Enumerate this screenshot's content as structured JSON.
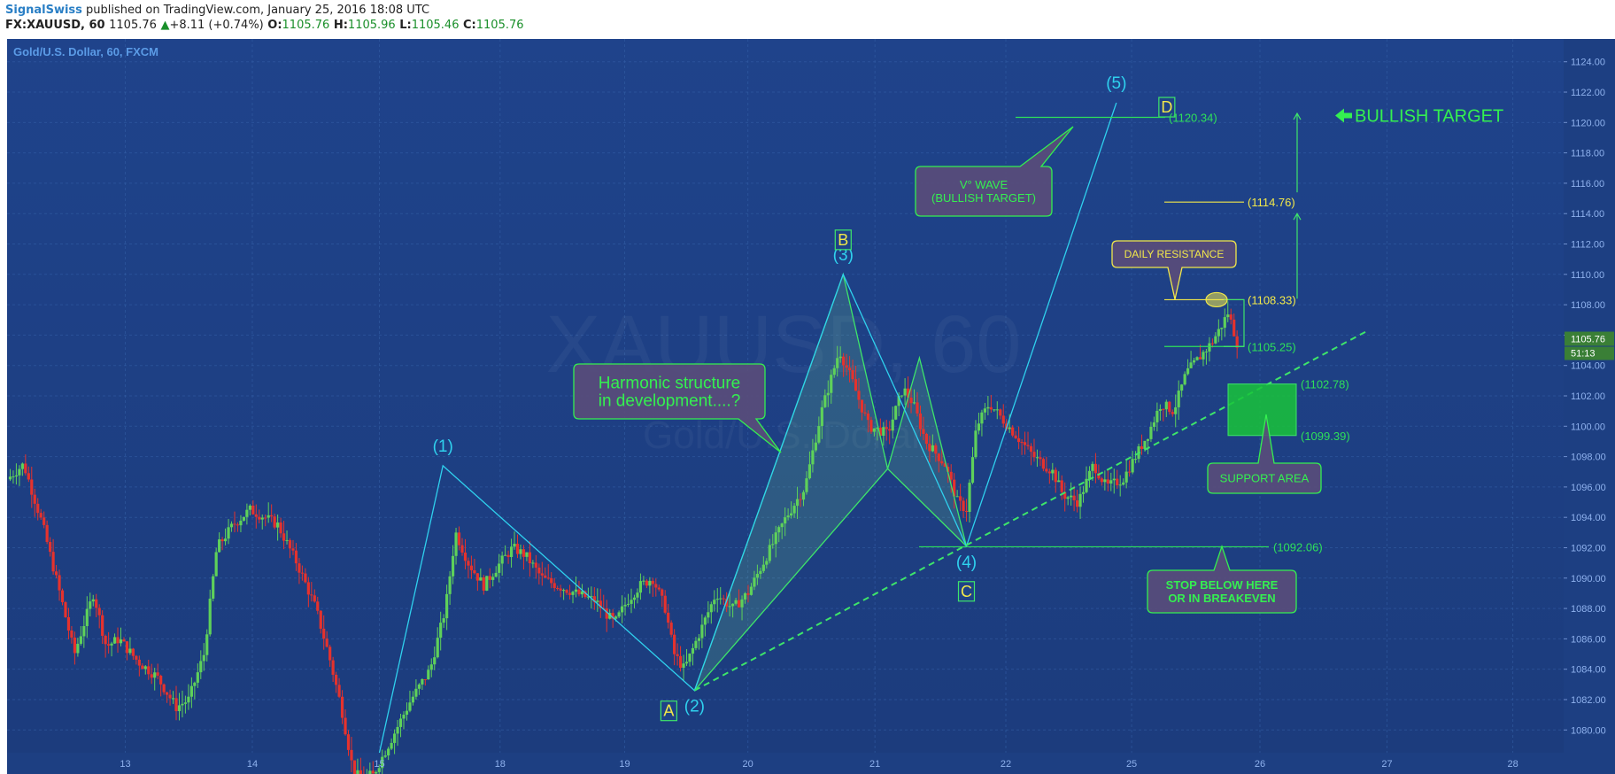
{
  "header": {
    "author": "SignalSwiss",
    "published": " published on TradingView.com, January 25, 2016 18:08 UTC",
    "symbol": "FX:XAUUSD, 60",
    "last": "1105.76",
    "up_arrow": "▲",
    "change": "+8.11 (+0.74%)",
    "o_label": "O:",
    "o": "1105.76",
    "h_label": "H:",
    "h": "1105.96",
    "l_label": "L:",
    "l": "1105.46",
    "c_label": "C:",
    "c": "1105.76"
  },
  "chart_data": {
    "type": "candlestick",
    "title": "Gold/U.S. Dollar, 60, FXCM",
    "watermark_symbol": "XAUUSD, 60",
    "watermark_name": "Gold/U.S. Dollar",
    "ylim": [
      1078.5,
      1125.5
    ],
    "y_ticks": [
      1080,
      1082,
      1084,
      1086,
      1088,
      1090,
      1092,
      1094,
      1096,
      1098,
      1100,
      1102,
      1104,
      1106,
      1108,
      1110,
      1112,
      1114,
      1116,
      1118,
      1120,
      1122,
      1124
    ],
    "x_ticks": [
      {
        "label": "13",
        "t": 1.0
      },
      {
        "label": "14",
        "t": 2.0
      },
      {
        "label": "15",
        "t": 3.0
      },
      {
        "label": "18",
        "t": 3.95
      },
      {
        "label": "19",
        "t": 4.93
      },
      {
        "label": "20",
        "t": 5.9
      },
      {
        "label": "21",
        "t": 6.9
      },
      {
        "label": "22",
        "t": 7.93
      },
      {
        "label": "25",
        "t": 8.92
      },
      {
        "label": "26",
        "t": 9.93
      },
      {
        "label": "27",
        "t": 10.93
      },
      {
        "label": "28",
        "t": 11.92
      }
    ],
    "xlim": [
      0.07,
      12.32
    ],
    "price_anchors": [
      [
        0.07,
        1096.5
      ],
      [
        0.2,
        1097.5
      ],
      [
        0.35,
        1093.5
      ],
      [
        0.5,
        1088.5
      ],
      [
        0.6,
        1085
      ],
      [
        0.75,
        1089
      ],
      [
        0.85,
        1085.5
      ],
      [
        0.95,
        1086
      ],
      [
        1.1,
        1084.5
      ],
      [
        1.25,
        1083.5
      ],
      [
        1.4,
        1081.5
      ],
      [
        1.5,
        1082
      ],
      [
        1.62,
        1085
      ],
      [
        1.72,
        1092
      ],
      [
        1.85,
        1093.5
      ],
      [
        1.98,
        1094.5
      ],
      [
        2.1,
        1094
      ],
      [
        2.2,
        1093.5
      ],
      [
        2.35,
        1091
      ],
      [
        2.5,
        1088
      ],
      [
        2.6,
        1085
      ],
      [
        2.7,
        1081.5
      ],
      [
        2.8,
        1077
      ],
      [
        2.95,
        1077
      ],
      [
        3.1,
        1079.5
      ],
      [
        3.25,
        1082
      ],
      [
        3.4,
        1084
      ],
      [
        3.52,
        1088
      ],
      [
        3.6,
        1093
      ],
      [
        3.7,
        1091
      ],
      [
        3.82,
        1089.5
      ],
      [
        3.95,
        1091
      ],
      [
        4.05,
        1092
      ],
      [
        4.15,
        1091.5
      ],
      [
        4.28,
        1090
      ],
      [
        4.4,
        1089.5
      ],
      [
        4.55,
        1089
      ],
      [
        4.7,
        1088.5
      ],
      [
        4.85,
        1087
      ],
      [
        4.95,
        1088.5
      ],
      [
        5.05,
        1089.5
      ],
      [
        5.15,
        1090
      ],
      [
        5.25,
        1088
      ],
      [
        5.32,
        1085
      ],
      [
        5.4,
        1084
      ],
      [
        5.5,
        1086
      ],
      [
        5.65,
        1089
      ],
      [
        5.78,
        1088
      ],
      [
        5.9,
        1089
      ],
      [
        6.05,
        1091.5
      ],
      [
        6.2,
        1094
      ],
      [
        6.35,
        1096
      ],
      [
        6.48,
        1101
      ],
      [
        6.62,
        1105
      ],
      [
        6.72,
        1103
      ],
      [
        6.85,
        1100
      ],
      [
        7.0,
        1099.5
      ],
      [
        7.12,
        1102.5
      ],
      [
        7.2,
        1101.5
      ],
      [
        7.3,
        1099
      ],
      [
        7.45,
        1097.5
      ],
      [
        7.55,
        1095
      ],
      [
        7.62,
        1094.5
      ],
      [
        7.7,
        1100
      ],
      [
        7.8,
        1101.5
      ],
      [
        7.9,
        1100.5
      ],
      [
        8.0,
        1099.5
      ],
      [
        8.15,
        1098
      ],
      [
        8.3,
        1097
      ],
      [
        8.38,
        1095.5
      ],
      [
        8.5,
        1095
      ],
      [
        8.62,
        1097.5
      ],
      [
        8.72,
        1096
      ],
      [
        8.85,
        1096.5
      ],
      [
        8.95,
        1098
      ],
      [
        9.05,
        1099.5
      ],
      [
        9.15,
        1101.5
      ],
      [
        9.25,
        1101
      ],
      [
        9.35,
        1103.5
      ],
      [
        9.45,
        1104.5
      ],
      [
        9.55,
        1105.5
      ],
      [
        9.62,
        1106.5
      ],
      [
        9.68,
        1107.5
      ],
      [
        9.75,
        1105.5
      ]
    ],
    "waves": [
      {
        "label": "(1)",
        "t": 3.5,
        "p": 1097.4
      },
      {
        "label": "(2)",
        "t": 5.48,
        "p": 1082.6
      },
      {
        "label": "(3)",
        "t": 6.65,
        "p": 1110.0
      },
      {
        "label": "(4)",
        "t": 7.62,
        "p": 1092.1
      },
      {
        "label": "(5)",
        "t": 8.8,
        "p": 1121.3
      }
    ],
    "points": [
      {
        "label": "A"
      },
      {
        "label": "B"
      },
      {
        "label": "C"
      },
      {
        "label": "D"
      }
    ],
    "levels": [
      {
        "label": "(1120.34)",
        "value": 1120.34,
        "color": "#2ee05a"
      },
      {
        "label": "(1114.76)",
        "value": 1114.76,
        "color": "#f2e84a"
      },
      {
        "label": "(1108.33)",
        "value": 1108.33,
        "color": "#f2e84a"
      },
      {
        "label": "(1105.25)",
        "value": 1105.25,
        "color": "#2ee05a"
      },
      {
        "label": "(1102.78)",
        "value": 1102.78,
        "color": "#2ee05a"
      },
      {
        "label": "(1099.39)",
        "value": 1099.39,
        "color": "#2ee05a"
      },
      {
        "label": "(1092.06)",
        "value": 1092.06,
        "color": "#2ee05a"
      }
    ],
    "current_price": "1105.76",
    "countdown": "51:13",
    "annotations": {
      "harmonic_1": "Harmonic structure",
      "harmonic_2": "in development....?",
      "v_wave_1": "V° WAVE",
      "v_wave_2": "(BULLISH TARGET)",
      "daily_resistance": "DAILY RESISTANCE",
      "support_area": "SUPPORT AREA",
      "stop_1": "STOP BELOW HERE",
      "stop_2": "OR IN BREAKEVEN",
      "bullish_target": "BULLISH TARGET"
    },
    "colors": {
      "background": "#1e4287",
      "up_candle": "#5ed15a",
      "down_candle": "#e5322d",
      "wave_line": "#2fd1ee",
      "harmonic_line": "#3ee56a",
      "annotation_text": "#34f050",
      "yellow": "#f2e84a"
    }
  }
}
